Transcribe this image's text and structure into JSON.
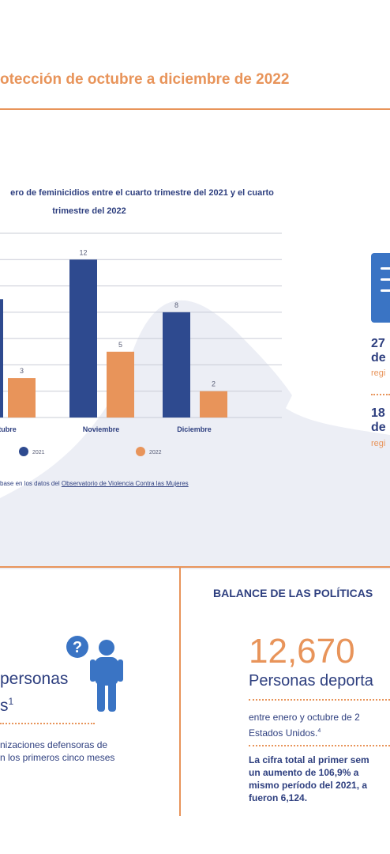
{
  "header": {
    "title": "otección de octubre a diciembre de 2022"
  },
  "chart_data": {
    "type": "bar",
    "title_line1": "ero de feminicidios entre el cuarto trimestre del 2021 y el cuarto",
    "title_line2": "trimestre del 2022",
    "categories": [
      "ctubre",
      "Noviembre",
      "Diciembre"
    ],
    "series": [
      {
        "name": "2021",
        "values": [
          null,
          12,
          8
        ],
        "labels": [
          "",
          "12",
          "8"
        ],
        "color": "#2e4a8f"
      },
      {
        "name": "2022",
        "values": [
          3,
          5,
          2
        ],
        "labels": [
          "3",
          "5",
          "2"
        ],
        "color": "#e8945a"
      }
    ],
    "ylim": [
      0,
      14
    ],
    "grid": true,
    "legend": "bottom",
    "source_prefix": "base en los datos del ",
    "source_link": "Observatorio de Violencia Contra las Mujeres"
  },
  "stats": {
    "stat1_num": "27",
    "stat1_de": "de",
    "stat1_sub": "regi",
    "stat2_num": "18",
    "stat2_de": "de",
    "stat2_sub": "regi"
  },
  "left_panel": {
    "line1": "personas",
    "line2": "s",
    "sup": "1",
    "body1": "nizaciones defensoras de",
    "body2": "n los primeros cinco meses"
  },
  "section2": {
    "title": "BALANCE DE LAS POLÍTICAS",
    "number": "12,670",
    "label": "Personas deporta",
    "p1_line1": "entre enero y octubre de 2",
    "p1_line2": "Estados Unidos.",
    "p1_sup": "4",
    "p2_line1": "La cifra total al primer sem",
    "p2_line2": "un aumento de 106,9% ",
    "p2_line2b": "a",
    "p2_line3": "mismo período del 2021, a",
    "p2_line4": "fueron 6,124."
  },
  "colors": {
    "accent": "#e8945a",
    "navy": "#2e3f7f",
    "bar2021": "#2e4a8f",
    "bar2022": "#e8945a",
    "icon": "#3a74c4"
  }
}
